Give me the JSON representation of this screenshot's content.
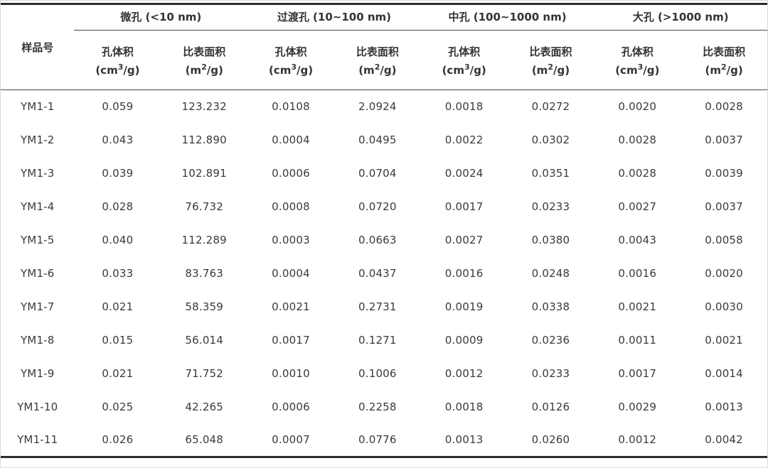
{
  "page": {
    "background": "#ffffff",
    "text_color": "#3a3a3a",
    "heavy_rule_color": "#2d2d2d",
    "light_rule_color": "#4a4a4a"
  },
  "table": {
    "sample_header": "样品号",
    "groups": [
      {
        "label": "微孔 (<10 nm)"
      },
      {
        "label": "过渡孔 (10~100 nm)"
      },
      {
        "label": "中孔 (100~1000 nm)"
      },
      {
        "label": "大孔 (>1000 nm)"
      }
    ],
    "subcolumns": [
      {
        "label": "孔体积",
        "unit_pre": "(cm",
        "unit_sup": "3",
        "unit_post": "/g)"
      },
      {
        "label": "比表面积",
        "unit_pre": "(m",
        "unit_sup": "2",
        "unit_post": "/g)"
      },
      {
        "label": "孔体积",
        "unit_pre": "(cm",
        "unit_sup": "3",
        "unit_post": "/g)"
      },
      {
        "label": "比表面积",
        "unit_pre": "(m",
        "unit_sup": "2",
        "unit_post": "/g)"
      },
      {
        "label": "孔体积",
        "unit_pre": "(cm",
        "unit_sup": "3",
        "unit_post": "/g)"
      },
      {
        "label": "比表面积",
        "unit_pre": "(m",
        "unit_sup": "2",
        "unit_post": "/g)"
      },
      {
        "label": "孔体积",
        "unit_pre": "(cm",
        "unit_sup": "3",
        "unit_post": "/g)"
      },
      {
        "label": "比表面积",
        "unit_pre": "(m",
        "unit_sup": "2",
        "unit_post": "/g)"
      }
    ],
    "rows": [
      {
        "sample": "YM1-1",
        "values": [
          "0.059",
          "123.232",
          "0.0108",
          "2.0924",
          "0.0018",
          "0.0272",
          "0.0020",
          "0.0028"
        ]
      },
      {
        "sample": "YM1-2",
        "values": [
          "0.043",
          "112.890",
          "0.0004",
          "0.0495",
          "0.0022",
          "0.0302",
          "0.0028",
          "0.0037"
        ]
      },
      {
        "sample": "YM1-3",
        "values": [
          "0.039",
          "102.891",
          "0.0006",
          "0.0704",
          "0.0024",
          "0.0351",
          "0.0028",
          "0.0039"
        ]
      },
      {
        "sample": "YM1-4",
        "values": [
          "0.028",
          "76.732",
          "0.0008",
          "0.0720",
          "0.0017",
          "0.0233",
          "0.0027",
          "0.0037"
        ]
      },
      {
        "sample": "YM1-5",
        "values": [
          "0.040",
          "112.289",
          "0.0003",
          "0.0663",
          "0.0027",
          "0.0380",
          "0.0043",
          "0.0058"
        ]
      },
      {
        "sample": "YM1-6",
        "values": [
          "0.033",
          "83.763",
          "0.0004",
          "0.0437",
          "0.0016",
          "0.0248",
          "0.0016",
          "0.0020"
        ]
      },
      {
        "sample": "YM1-7",
        "values": [
          "0.021",
          "58.359",
          "0.0021",
          "0.2731",
          "0.0019",
          "0.0338",
          "0.0021",
          "0.0030"
        ]
      },
      {
        "sample": "YM1-8",
        "values": [
          "0.015",
          "56.014",
          "0.0017",
          "0.1271",
          "0.0009",
          "0.0236",
          "0.0011",
          "0.0021"
        ]
      },
      {
        "sample": "YM1-9",
        "values": [
          "0.021",
          "71.752",
          "0.0010",
          "0.1006",
          "0.0012",
          "0.0233",
          "0.0017",
          "0.0014"
        ]
      },
      {
        "sample": "YM1-10",
        "values": [
          "0.025",
          "42.265",
          "0.0006",
          "0.2258",
          "0.0018",
          "0.0126",
          "0.0029",
          "0.0013"
        ]
      },
      {
        "sample": "YM1-11",
        "values": [
          "0.026",
          "65.048",
          "0.0007",
          "0.0776",
          "0.0013",
          "0.0260",
          "0.0012",
          "0.0042"
        ]
      }
    ]
  }
}
